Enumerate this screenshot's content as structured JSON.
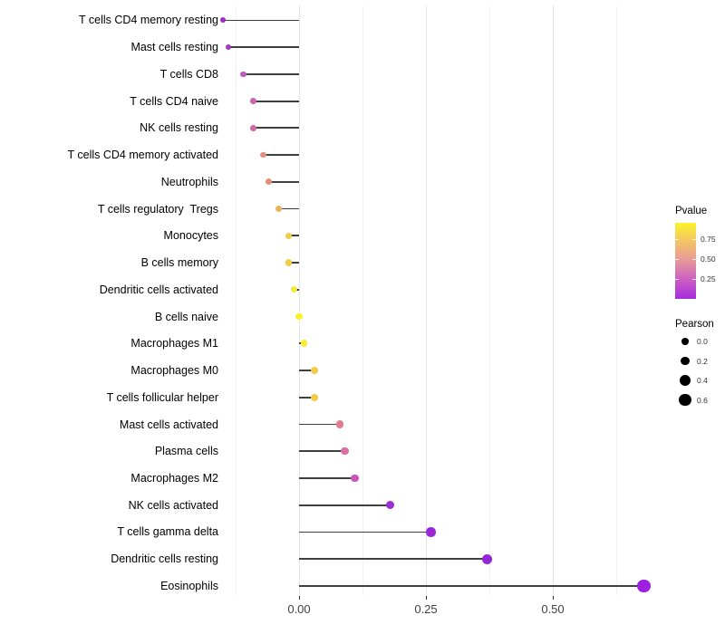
{
  "chart_data": {
    "type": "lollipop",
    "title": "",
    "xlabel": "",
    "ylabel": "",
    "xlim": [
      -0.19,
      0.71
    ],
    "x_ticks": [
      {
        "label": "0.00",
        "value": 0.0
      },
      {
        "label": "0.25",
        "value": 0.25
      },
      {
        "label": "0.50",
        "value": 0.5
      }
    ],
    "grid_minor_values": [
      -0.125,
      0.125,
      0.375,
      0.625
    ],
    "grid_major_values": [
      0.0,
      0.25,
      0.5
    ],
    "rows": [
      {
        "label": "T cells CD4 memory resting",
        "pearson": -0.15,
        "color": "#9C2EC6"
      },
      {
        "label": "Mast cells resting",
        "pearson": -0.14,
        "color": "#A338C7"
      },
      {
        "label": "T cells CD8",
        "pearson": -0.11,
        "color": "#C158BC"
      },
      {
        "label": "T cells CD4 naive",
        "pearson": -0.09,
        "color": "#CB66AE"
      },
      {
        "label": "NK cells resting",
        "pearson": -0.09,
        "color": "#CF6AA3"
      },
      {
        "label": "T cells CD4 memory activated",
        "pearson": -0.07,
        "color": "#E18F80"
      },
      {
        "label": "Neutrophils",
        "pearson": -0.06,
        "color": "#E1907C"
      },
      {
        "label": "T cells regulatory  Tregs",
        "pearson": -0.04,
        "color": "#EBB25C"
      },
      {
        "label": "Monocytes",
        "pearson": -0.02,
        "color": "#F0CC49"
      },
      {
        "label": "B cells memory",
        "pearson": -0.02,
        "color": "#F0CC49"
      },
      {
        "label": "Dendritic cells activated",
        "pearson": -0.01,
        "color": "#F5E73A"
      },
      {
        "label": "B cells naive",
        "pearson": 0.0,
        "color": "#FAF228"
      },
      {
        "label": "Macrophages M1",
        "pearson": 0.01,
        "color": "#F8ED2E"
      },
      {
        "label": "Macrophages M0",
        "pearson": 0.03,
        "color": "#F1CC49"
      },
      {
        "label": "T cells follicular helper",
        "pearson": 0.03,
        "color": "#F1CC49"
      },
      {
        "label": "Mast cells activated",
        "pearson": 0.08,
        "color": "#E17E8E"
      },
      {
        "label": "Plasma cells",
        "pearson": 0.09,
        "color": "#DB6FA6"
      },
      {
        "label": "Macrophages M2",
        "pearson": 0.11,
        "color": "#C756BB"
      },
      {
        "label": "NK cells activated",
        "pearson": 0.18,
        "color": "#9B2DD4"
      },
      {
        "label": "T cells gamma delta",
        "pearson": 0.26,
        "color": "#9929D6"
      },
      {
        "label": "Dendritic cells resting",
        "pearson": 0.37,
        "color": "#9526D8"
      },
      {
        "label": "Eosinophils",
        "pearson": 0.68,
        "color": "#9E1FE0"
      }
    ]
  },
  "legend": {
    "pvalue": {
      "title": "Pvalue",
      "ticks": [
        {
          "label": "0.75",
          "value": 0.75
        },
        {
          "label": "0.50",
          "value": 0.5
        },
        {
          "label": "0.25",
          "value": 0.25
        }
      ],
      "bar_range": [
        0.0,
        0.95
      ],
      "gradient_bottom_to_top": [
        "#A62CE0",
        "#CB5DC2",
        "#E7989B",
        "#F3C366",
        "#FBF42C"
      ]
    },
    "pearson": {
      "title": "Pearson",
      "sizes": [
        {
          "label": "0.0",
          "value": 0.0
        },
        {
          "label": "0.2",
          "value": 0.2
        },
        {
          "label": "0.4",
          "value": 0.4
        },
        {
          "label": "0.6",
          "value": 0.6
        }
      ],
      "dot_color": "#000000"
    }
  },
  "colors": {
    "stem": "#3f3f3f",
    "grid_major": "#e4e4e4",
    "grid_minor": "#f2f2f2",
    "axis_text": "#404040",
    "label_text": "#000000",
    "background": "#ffffff"
  }
}
